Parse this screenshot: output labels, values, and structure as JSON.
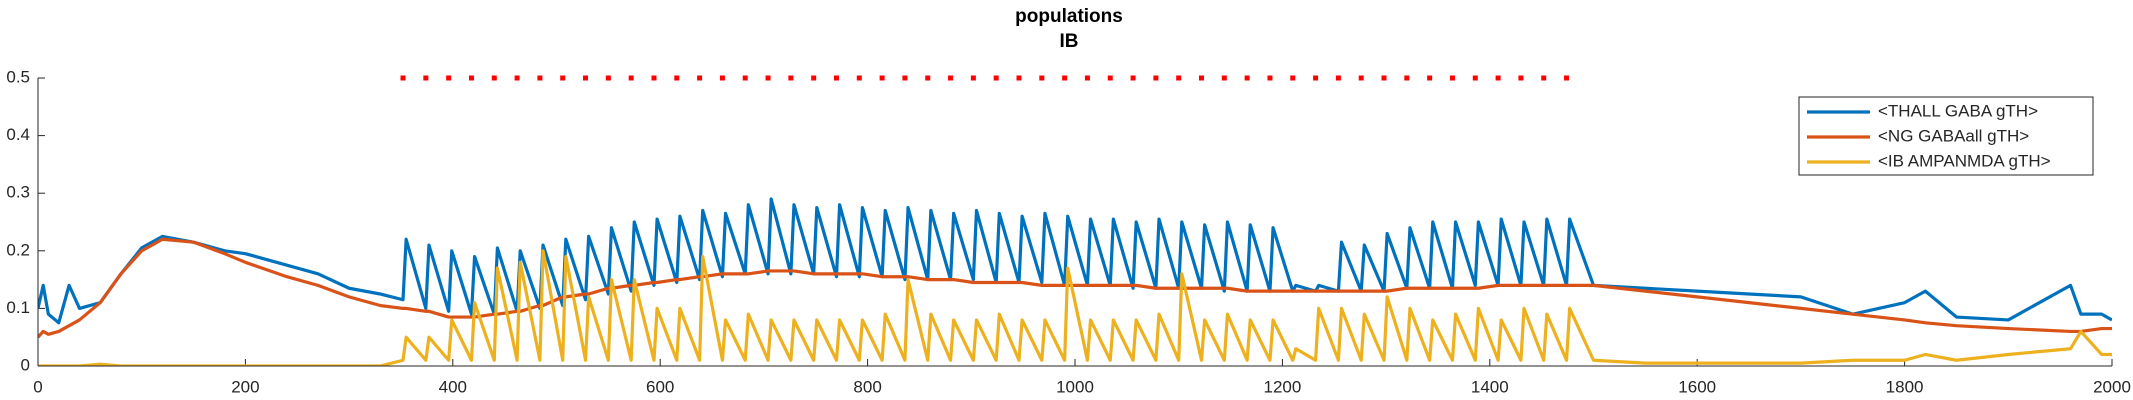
{
  "chart_data": {
    "type": "line",
    "title": "populations",
    "subtitle": "IB",
    "x": [
      0,
      5,
      10,
      20,
      30,
      40,
      60,
      80,
      100,
      120,
      150,
      180,
      200,
      240,
      270,
      300,
      330,
      352,
      355,
      374,
      377,
      396,
      399,
      418,
      421,
      440,
      443,
      462,
      465,
      484,
      487,
      506,
      509,
      528,
      531,
      550,
      553,
      572,
      575,
      594,
      597,
      616,
      619,
      638,
      641,
      660,
      663,
      682,
      685,
      704,
      707,
      726,
      729,
      748,
      751,
      770,
      773,
      792,
      795,
      814,
      817,
      836,
      839,
      858,
      861,
      880,
      883,
      902,
      905,
      924,
      927,
      946,
      949,
      968,
      971,
      990,
      993,
      1012,
      1015,
      1034,
      1037,
      1056,
      1059,
      1078,
      1081,
      1100,
      1103,
      1122,
      1125,
      1144,
      1147,
      1166,
      1169,
      1188,
      1191,
      1210,
      1213,
      1232,
      1235,
      1254,
      1257,
      1276,
      1279,
      1298,
      1301,
      1320,
      1323,
      1342,
      1345,
      1364,
      1367,
      1386,
      1389,
      1408,
      1411,
      1430,
      1433,
      1452,
      1455,
      1474,
      1477,
      1500,
      1550,
      1600,
      1650,
      1700,
      1750,
      1800,
      1820,
      1850,
      1900,
      1960,
      1970,
      1990,
      2000
    ],
    "series": [
      {
        "name": "<THALL GABA gTH>",
        "color": "#0072bd",
        "values": [
          0.1,
          0.14,
          0.09,
          0.075,
          0.14,
          0.1,
          0.11,
          0.16,
          0.205,
          0.225,
          0.215,
          0.2,
          0.195,
          0.175,
          0.16,
          0.135,
          0.125,
          0.115,
          0.22,
          0.1,
          0.21,
          0.095,
          0.2,
          0.09,
          0.19,
          0.09,
          0.205,
          0.095,
          0.2,
          0.1,
          0.21,
          0.105,
          0.22,
          0.115,
          0.225,
          0.125,
          0.24,
          0.13,
          0.25,
          0.14,
          0.255,
          0.145,
          0.26,
          0.15,
          0.27,
          0.155,
          0.265,
          0.16,
          0.28,
          0.16,
          0.29,
          0.16,
          0.28,
          0.16,
          0.275,
          0.155,
          0.28,
          0.155,
          0.275,
          0.155,
          0.27,
          0.15,
          0.275,
          0.15,
          0.27,
          0.15,
          0.265,
          0.15,
          0.27,
          0.145,
          0.265,
          0.145,
          0.26,
          0.145,
          0.265,
          0.14,
          0.26,
          0.14,
          0.255,
          0.14,
          0.255,
          0.135,
          0.25,
          0.135,
          0.255,
          0.135,
          0.25,
          0.135,
          0.245,
          0.13,
          0.25,
          0.13,
          0.245,
          0.13,
          0.24,
          0.13,
          0.14,
          0.13,
          0.14,
          0.13,
          0.215,
          0.13,
          0.21,
          0.13,
          0.23,
          0.135,
          0.24,
          0.135,
          0.25,
          0.135,
          0.25,
          0.14,
          0.25,
          0.14,
          0.255,
          0.14,
          0.25,
          0.14,
          0.255,
          0.14,
          0.255,
          0.14,
          0.135,
          0.13,
          0.125,
          0.12,
          0.09,
          0.11,
          0.13,
          0.085,
          0.08,
          0.14,
          0.09,
          0.09,
          0.08
        ]
      },
      {
        "name": "<NG GABAall gTH>",
        "color": "#d95319",
        "values": [
          0.05,
          0.06,
          0.055,
          0.06,
          0.07,
          0.08,
          0.11,
          0.16,
          0.2,
          0.22,
          0.215,
          0.195,
          0.18,
          0.155,
          0.14,
          0.12,
          0.105,
          0.1,
          0.1,
          0.095,
          0.095,
          0.085,
          0.085,
          0.085,
          0.085,
          0.09,
          0.09,
          0.095,
          0.095,
          0.105,
          0.105,
          0.12,
          0.12,
          0.125,
          0.125,
          0.135,
          0.135,
          0.14,
          0.14,
          0.145,
          0.145,
          0.15,
          0.15,
          0.155,
          0.155,
          0.16,
          0.16,
          0.16,
          0.16,
          0.165,
          0.165,
          0.165,
          0.165,
          0.16,
          0.16,
          0.16,
          0.16,
          0.16,
          0.16,
          0.155,
          0.155,
          0.155,
          0.155,
          0.15,
          0.15,
          0.15,
          0.15,
          0.145,
          0.145,
          0.145,
          0.145,
          0.145,
          0.145,
          0.14,
          0.14,
          0.14,
          0.14,
          0.14,
          0.14,
          0.14,
          0.14,
          0.14,
          0.14,
          0.135,
          0.135,
          0.135,
          0.135,
          0.135,
          0.135,
          0.135,
          0.135,
          0.13,
          0.13,
          0.13,
          0.13,
          0.13,
          0.13,
          0.13,
          0.13,
          0.13,
          0.13,
          0.13,
          0.13,
          0.13,
          0.13,
          0.135,
          0.135,
          0.135,
          0.135,
          0.135,
          0.135,
          0.135,
          0.135,
          0.14,
          0.14,
          0.14,
          0.14,
          0.14,
          0.14,
          0.14,
          0.14,
          0.14,
          0.13,
          0.12,
          0.11,
          0.1,
          0.09,
          0.08,
          0.075,
          0.07,
          0.065,
          0.06,
          0.06,
          0.065,
          0.065
        ]
      },
      {
        "name": "<IB AMPANMDA gTH>",
        "color": "#edb120",
        "values": [
          0,
          0,
          0,
          0,
          0,
          0,
          0.003,
          0,
          0,
          0,
          0,
          0,
          0,
          0,
          0,
          0,
          0,
          0.01,
          0.05,
          0.01,
          0.05,
          0.01,
          0.08,
          0.01,
          0.11,
          0.01,
          0.17,
          0.01,
          0.18,
          0.01,
          0.2,
          0.01,
          0.19,
          0.01,
          0.12,
          0.01,
          0.15,
          0.01,
          0.15,
          0.01,
          0.1,
          0.01,
          0.1,
          0.01,
          0.19,
          0.01,
          0.08,
          0.01,
          0.09,
          0.01,
          0.08,
          0.01,
          0.08,
          0.01,
          0.08,
          0.01,
          0.08,
          0.01,
          0.08,
          0.01,
          0.09,
          0.01,
          0.15,
          0.01,
          0.09,
          0.01,
          0.08,
          0.01,
          0.08,
          0.01,
          0.09,
          0.01,
          0.08,
          0.01,
          0.08,
          0.01,
          0.17,
          0.01,
          0.08,
          0.01,
          0.08,
          0.01,
          0.08,
          0.01,
          0.09,
          0.01,
          0.16,
          0.01,
          0.08,
          0.01,
          0.09,
          0.01,
          0.08,
          0.01,
          0.08,
          0.01,
          0.03,
          0.01,
          0.1,
          0.01,
          0.1,
          0.01,
          0.09,
          0.01,
          0.12,
          0.01,
          0.1,
          0.01,
          0.08,
          0.01,
          0.09,
          0.01,
          0.1,
          0.01,
          0.08,
          0.01,
          0.1,
          0.01,
          0.09,
          0.01,
          0.1,
          0.01,
          0.005,
          0.005,
          0.005,
          0.005,
          0.01,
          0.01,
          0.02,
          0.01,
          0.02,
          0.03,
          0.06,
          0.02,
          0.02
        ]
      }
    ],
    "markers": {
      "color": "#ff0000",
      "x": [
        352,
        374,
        396,
        418,
        440,
        462,
        484,
        506,
        528,
        550,
        572,
        594,
        616,
        638,
        660,
        682,
        704,
        726,
        748,
        770,
        792,
        814,
        836,
        858,
        880,
        902,
        924,
        946,
        968,
        990,
        1012,
        1034,
        1056,
        1078,
        1100,
        1122,
        1144,
        1166,
        1188,
        1210,
        1232,
        1254,
        1276,
        1298,
        1320,
        1342,
        1364,
        1386,
        1408,
        1430,
        1452,
        1474
      ],
      "values": [
        0.5,
        0.5,
        0.5,
        0.5,
        0.5,
        0.5,
        0.5,
        0.5,
        0.5,
        0.5,
        0.5,
        0.5,
        0.5,
        0.5,
        0.5,
        0.5,
        0.5,
        0.5,
        0.5,
        0.5,
        0.5,
        0.5,
        0.5,
        0.5,
        0.5,
        0.5,
        0.5,
        0.5,
        0.5,
        0.5,
        0.5,
        0.5,
        0.5,
        0.5,
        0.5,
        0.5,
        0.5,
        0.5,
        0.5,
        0.5,
        0.5,
        0.5,
        0.5,
        0.5,
        0.5,
        0.5,
        0.5,
        0.5,
        0.5,
        0.5,
        0.5,
        0.5
      ]
    },
    "xlim": [
      0,
      2000
    ],
    "xticks": [
      0,
      200,
      400,
      600,
      800,
      1000,
      1200,
      1400,
      1600,
      1800,
      2000
    ],
    "ylim": [
      0,
      0.5
    ],
    "yticks": [
      0,
      0.1,
      0.2,
      0.3,
      0.4,
      0.5
    ],
    "legend": "northeast"
  }
}
